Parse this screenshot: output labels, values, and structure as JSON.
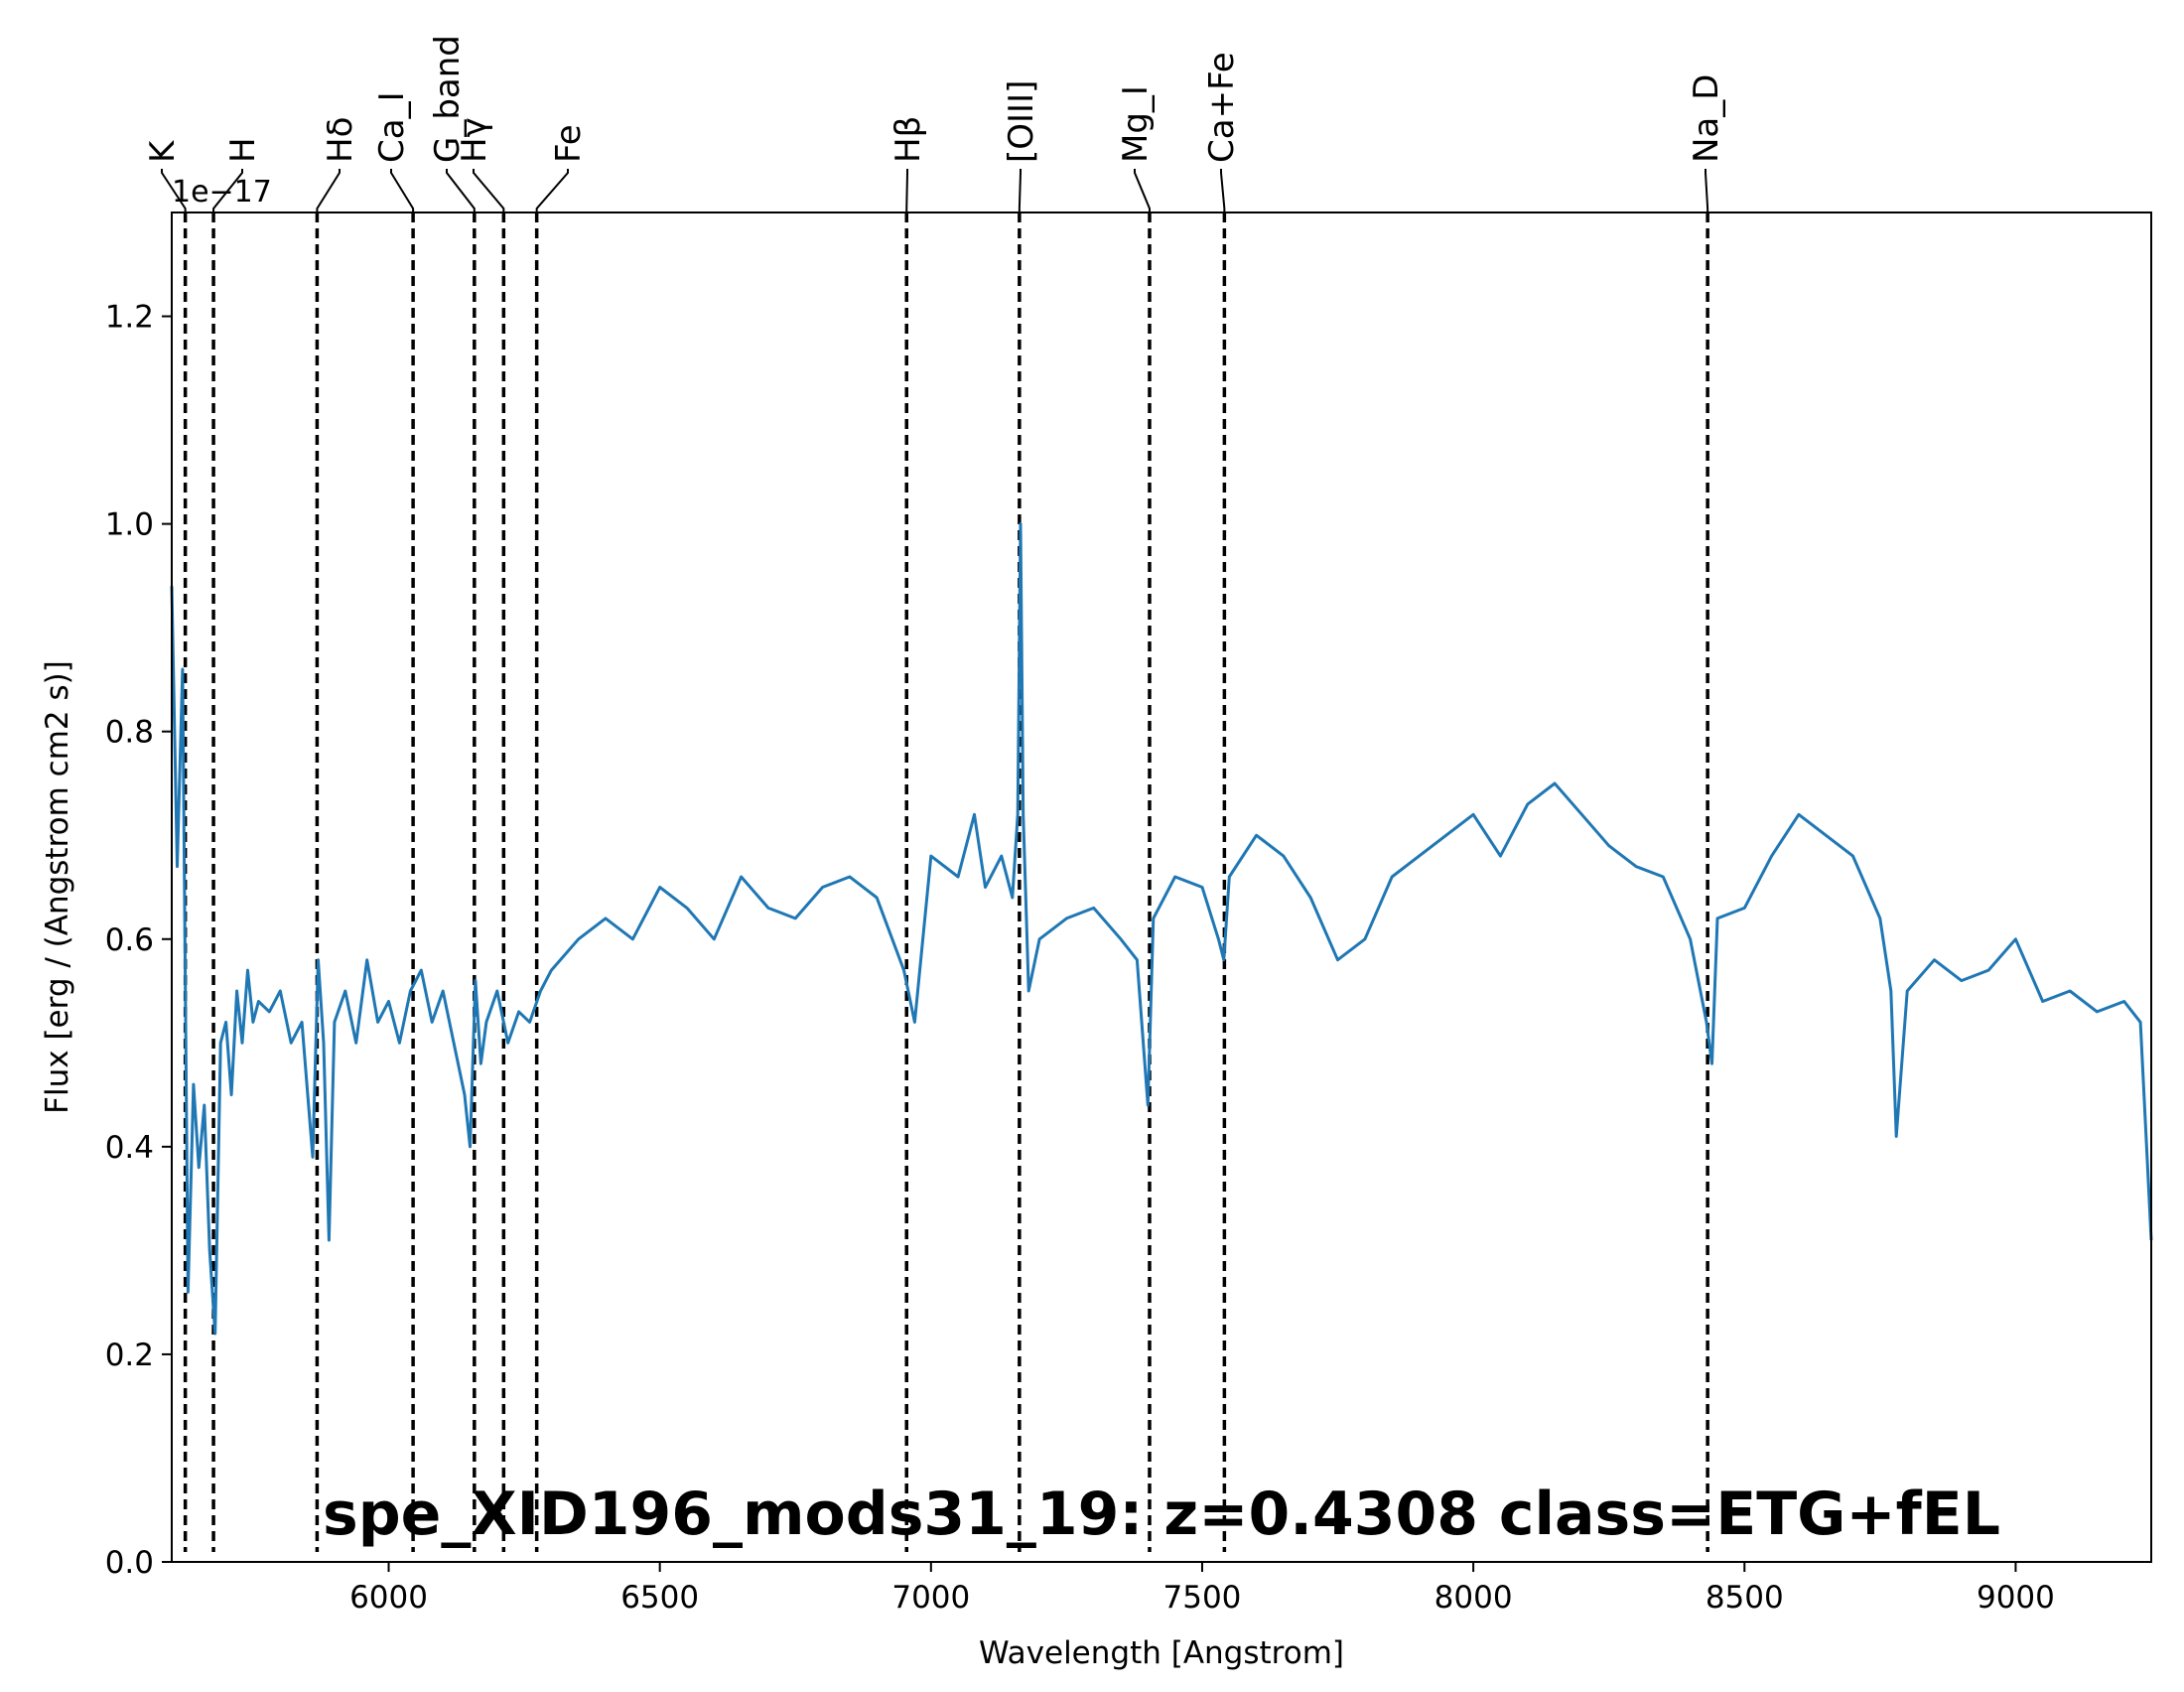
{
  "chart_data": {
    "type": "line",
    "title": "spe_XID196_mods31_19: z=0.4308 class=ETG+fEL",
    "title_color": "#ffa500",
    "title_placement": "bottom-center inside axes",
    "xlabel": "Wavelength [Angstrom]",
    "ylabel": "Flux [erg / (Angstrom cm2 s)]",
    "y_offset_label": "1e−17",
    "xlim": [
      5600,
      9250
    ],
    "ylim": [
      0.0,
      1.3
    ],
    "x_ticks": [
      6000,
      6500,
      7000,
      7500,
      8000,
      8500,
      9000
    ],
    "x_tick_labels": [
      "6000",
      "6500",
      "7000",
      "7500",
      "8000",
      "8500",
      "9000"
    ],
    "y_ticks": [
      0.0,
      0.2,
      0.4,
      0.6,
      0.8,
      1.0,
      1.2
    ],
    "y_tick_labels": [
      "0.0",
      "0.2",
      "0.4",
      "0.6",
      "0.8",
      "1.0",
      "1.2"
    ],
    "grid": false,
    "legend": "none",
    "series": [
      {
        "color": "#1f77b4",
        "x": [
          5600,
          5610,
          5620,
          5630,
          5640,
          5650,
          5660,
          5670,
          5680,
          5690,
          5700,
          5710,
          5720,
          5730,
          5740,
          5750,
          5760,
          5780,
          5800,
          5820,
          5840,
          5860,
          5870,
          5880,
          5890,
          5900,
          5920,
          5940,
          5960,
          5980,
          6000,
          6020,
          6040,
          6060,
          6080,
          6100,
          6120,
          6140,
          6150,
          6160,
          6170,
          6180,
          6200,
          6220,
          6240,
          6260,
          6280,
          6300,
          6350,
          6400,
          6450,
          6500,
          6550,
          6600,
          6650,
          6700,
          6750,
          6800,
          6850,
          6900,
          6950,
          6970,
          7000,
          7050,
          7080,
          7100,
          7130,
          7150,
          7160,
          7165,
          7170,
          7180,
          7200,
          7250,
          7300,
          7350,
          7380,
          7400,
          7410,
          7420,
          7450,
          7500,
          7530,
          7540,
          7550,
          7600,
          7650,
          7700,
          7750,
          7800,
          7850,
          7900,
          7950,
          8000,
          8050,
          8100,
          8150,
          8200,
          8250,
          8300,
          8350,
          8400,
          8430,
          8440,
          8450,
          8500,
          8550,
          8600,
          8650,
          8700,
          8750,
          8770,
          8780,
          8800,
          8850,
          8900,
          8950,
          9000,
          9050,
          9100,
          9150,
          9200,
          9230,
          9250
        ],
        "y": [
          0.94,
          0.67,
          0.86,
          0.26,
          0.46,
          0.38,
          0.44,
          0.3,
          0.22,
          0.5,
          0.52,
          0.45,
          0.55,
          0.5,
          0.57,
          0.52,
          0.54,
          0.53,
          0.55,
          0.5,
          0.52,
          0.39,
          0.58,
          0.5,
          0.31,
          0.52,
          0.55,
          0.5,
          0.58,
          0.52,
          0.54,
          0.5,
          0.55,
          0.57,
          0.52,
          0.55,
          0.5,
          0.45,
          0.4,
          0.56,
          0.48,
          0.52,
          0.55,
          0.5,
          0.53,
          0.52,
          0.55,
          0.57,
          0.6,
          0.62,
          0.6,
          0.65,
          0.63,
          0.6,
          0.66,
          0.63,
          0.62,
          0.65,
          0.66,
          0.64,
          0.57,
          0.52,
          0.68,
          0.66,
          0.72,
          0.65,
          0.68,
          0.64,
          0.72,
          1.0,
          0.72,
          0.55,
          0.6,
          0.62,
          0.63,
          0.6,
          0.58,
          0.44,
          0.62,
          0.63,
          0.66,
          0.65,
          0.6,
          0.58,
          0.66,
          0.7,
          0.68,
          0.64,
          0.58,
          0.6,
          0.66,
          0.68,
          0.7,
          0.72,
          0.68,
          0.73,
          0.75,
          0.72,
          0.69,
          0.67,
          0.66,
          0.6,
          0.52,
          0.48,
          0.62,
          0.63,
          0.68,
          0.72,
          0.7,
          0.68,
          0.62,
          0.55,
          0.41,
          0.55,
          0.58,
          0.56,
          0.57,
          0.6,
          0.54,
          0.55,
          0.53,
          0.54,
          0.52,
          0.31
        ]
      }
    ],
    "line_marker_color": "#000000",
    "line_markers": [
      {
        "label": "K",
        "x": 5625
      },
      {
        "label": "H",
        "x": 5677
      },
      {
        "label": "Hδ",
        "x": 5868
      },
      {
        "label": "Ca_I",
        "x": 6045
      },
      {
        "label": "G_band",
        "x": 6158
      },
      {
        "label": "Hγ",
        "x": 6212
      },
      {
        "label": "Fe",
        "x": 6273
      },
      {
        "label": "Hβ",
        "x": 6955
      },
      {
        "label": "[OIII]",
        "x": 7163
      },
      {
        "label": "Mg_I",
        "x": 7403
      },
      {
        "label": "Ca+Fe",
        "x": 7541
      },
      {
        "label": "Na_D",
        "x": 8432
      }
    ]
  }
}
